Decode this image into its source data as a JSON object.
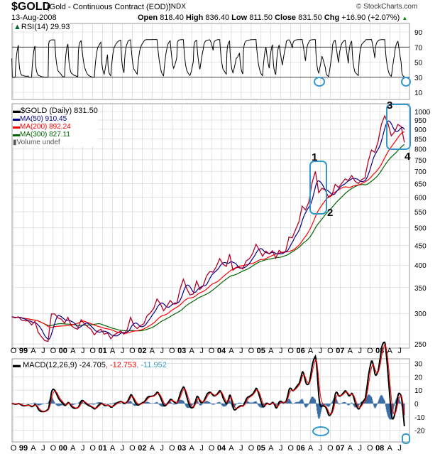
{
  "header": {
    "symbol": "$GOLD",
    "description": "(Gold - Continuous Contract (EOD))",
    "exchange": "INDX",
    "copyright": "© StockCharts.com",
    "date": "13-Aug-2008",
    "open_label": "Open",
    "open": "818.40",
    "high_label": "High",
    "high": "836.40",
    "low_label": "Low",
    "low": "811.50",
    "close_label": "Close",
    "close": "831.50",
    "chg_label": "Chg",
    "chg": "+16.90 (+2.07%)",
    "chg_icon": "triangle-up-icon"
  },
  "colors": {
    "price": "#b0002a",
    "ma50": "#00008b",
    "ma200": "#ff0000",
    "ma300": "#006400",
    "macd": "#000000",
    "signal": "#ff0000",
    "hist": "#3a6ea5",
    "annotation": "#3399cc",
    "grid": "#d0d0d0"
  },
  "chart_data": [
    {
      "type": "line",
      "panel": "rsi",
      "legend": "RSI(14) 29.93",
      "ylim": [
        0,
        100
      ],
      "yticks": [
        "90",
        "70",
        "50",
        "30",
        "10"
      ],
      "reference_lines": [
        70,
        30
      ]
    },
    {
      "type": "line",
      "panel": "price",
      "scale": "log",
      "ylim": [
        245,
        1060
      ],
      "legend": [
        {
          "label": "$GOLD (Daily) 831.50",
          "color": "#000000"
        },
        {
          "label": "MA(50) 910.45",
          "color": "#00008b"
        },
        {
          "label": "MA(200) 892.24",
          "color": "#ff0000"
        },
        {
          "label": "MA(300) 827.11",
          "color": "#006400"
        },
        {
          "label": "Volume undef",
          "color": "#555555"
        }
      ],
      "yticks": [
        "1000",
        "950",
        "900",
        "850",
        "800",
        "750",
        "700",
        "650",
        "600",
        "550",
        "500",
        "450",
        "400",
        "350",
        "300",
        "250"
      ],
      "x": [
        "1998-09",
        "1998-10",
        "1998-11",
        "1998-12",
        "1999-01",
        "1999-02",
        "1999-03",
        "1999-04",
        "1999-05",
        "1999-06",
        "1999-07",
        "1999-08",
        "1999-09",
        "1999-10",
        "1999-11",
        "1999-12",
        "2000-01",
        "2000-02",
        "2000-03",
        "2000-04",
        "2000-05",
        "2000-06",
        "2000-07",
        "2000-08",
        "2000-09",
        "2000-10",
        "2000-11",
        "2000-12",
        "2001-01",
        "2001-02",
        "2001-03",
        "2001-04",
        "2001-05",
        "2001-06",
        "2001-07",
        "2001-08",
        "2001-09",
        "2001-10",
        "2001-11",
        "2001-12",
        "2002-01",
        "2002-02",
        "2002-03",
        "2002-04",
        "2002-05",
        "2002-06",
        "2002-07",
        "2002-08",
        "2002-09",
        "2002-10",
        "2002-11",
        "2002-12",
        "2003-01",
        "2003-02",
        "2003-03",
        "2003-04",
        "2003-05",
        "2003-06",
        "2003-07",
        "2003-08",
        "2003-09",
        "2003-10",
        "2003-11",
        "2003-12",
        "2004-01",
        "2004-02",
        "2004-03",
        "2004-04",
        "2004-05",
        "2004-06",
        "2004-07",
        "2004-08",
        "2004-09",
        "2004-10",
        "2004-11",
        "2004-12",
        "2005-01",
        "2005-02",
        "2005-03",
        "2005-04",
        "2005-05",
        "2005-06",
        "2005-07",
        "2005-08",
        "2005-09",
        "2005-10",
        "2005-11",
        "2005-12",
        "2006-01",
        "2006-02",
        "2006-03",
        "2006-04",
        "2006-05",
        "2006-06",
        "2006-07",
        "2006-08",
        "2006-09",
        "2006-10",
        "2006-11",
        "2006-12",
        "2007-01",
        "2007-02",
        "2007-03",
        "2007-04",
        "2007-05",
        "2007-06",
        "2007-07",
        "2007-08",
        "2007-09",
        "2007-10",
        "2007-11",
        "2007-12",
        "2008-01",
        "2008-02",
        "2008-03",
        "2008-04",
        "2008-05",
        "2008-06",
        "2008-07",
        "2008-08"
      ],
      "close": [
        294,
        292,
        294,
        288,
        287,
        287,
        280,
        286,
        268,
        261,
        255,
        254,
        299,
        299,
        292,
        290,
        283,
        293,
        279,
        275,
        273,
        289,
        282,
        277,
        273,
        264,
        270,
        273,
        265,
        267,
        258,
        264,
        267,
        270,
        265,
        273,
        293,
        279,
        274,
        279,
        282,
        296,
        301,
        309,
        327,
        318,
        305,
        313,
        324,
        317,
        318,
        347,
        368,
        348,
        335,
        337,
        364,
        346,
        354,
        375,
        385,
        384,
        397,
        416,
        402,
        397,
        427,
        388,
        394,
        395,
        391,
        410,
        416,
        429,
        453,
        438,
        422,
        435,
        428,
        436,
        417,
        437,
        430,
        435,
        473,
        471,
        495,
        518,
        569,
        556,
        583,
        654,
        700,
        616,
        633,
        626,
        599,
        606,
        648,
        636,
        652,
        669,
        663,
        683,
        660,
        651,
        666,
        673,
        743,
        795,
        784,
        836,
        926,
        975,
        930,
        865,
        886,
        926,
        914,
        831.5
      ],
      "annotations": [
        {
          "label": "1"
        },
        {
          "label": "2"
        },
        {
          "label": "3"
        },
        {
          "label": "4"
        }
      ]
    },
    {
      "type": "line",
      "panel": "macd",
      "legend_macd": "MACD(12,26,9) -24.705",
      "legend_signal": ", -12.753",
      "legend_hist": ", -11.952",
      "ylim": [
        -28,
        32
      ],
      "yticks": [
        "30",
        "20",
        "10",
        "0",
        "-10",
        "-20"
      ]
    }
  ],
  "x_axis": {
    "labels": [
      "O",
      "99",
      "A",
      "J",
      "O",
      "00",
      "A",
      "J",
      "O",
      "01",
      "A",
      "J",
      "O",
      "02",
      "A",
      "J",
      "O",
      "03",
      "A",
      "J",
      "O",
      "04",
      "A",
      "J",
      "O",
      "05",
      "A",
      "J",
      "O",
      "06",
      "A",
      "J",
      "O",
      "07",
      "A",
      "J",
      "O",
      "08",
      "A",
      "J"
    ]
  }
}
